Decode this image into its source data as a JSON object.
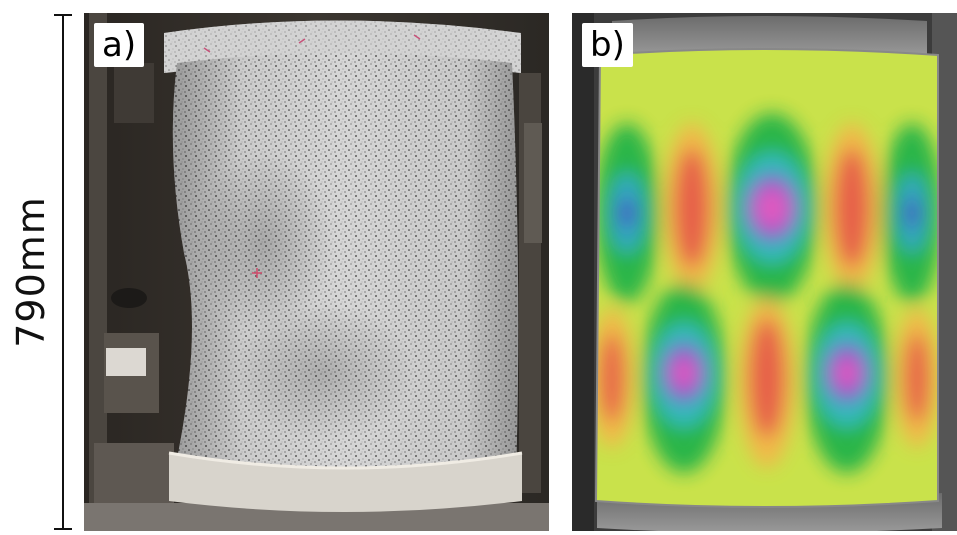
{
  "scale_bar": {
    "label": "790mm"
  },
  "panel_a": {
    "label": "a)"
  },
  "panel_b": {
    "label": "b)"
  },
  "colors": {
    "background": "#ffffff",
    "specimen": "#d2d2d2",
    "speckle": "#3a3a3a",
    "contour_base": "#c9e24b"
  }
}
